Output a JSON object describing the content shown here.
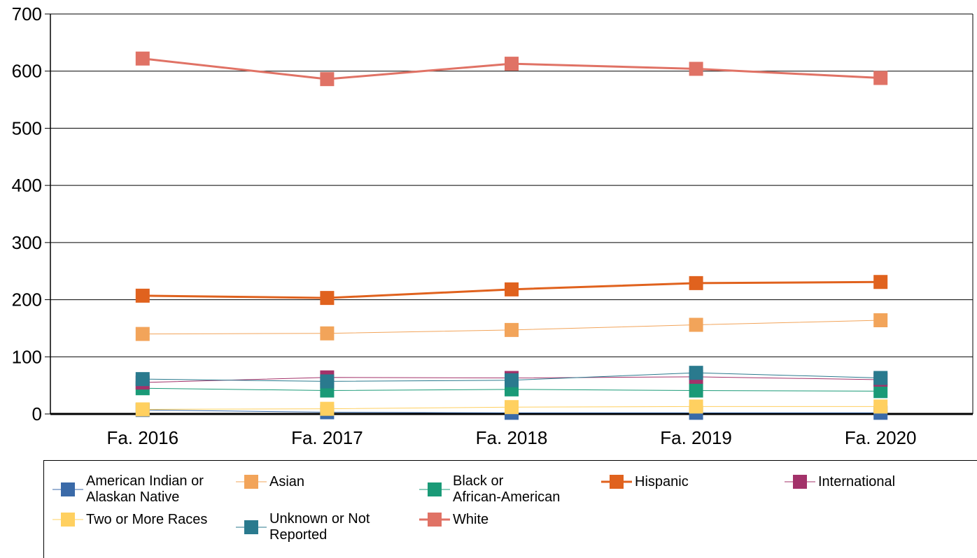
{
  "chart_data": {
    "type": "line",
    "title": "",
    "xlabel": "",
    "ylabel": "",
    "categories": [
      "Fa. 2016",
      "Fa. 2017",
      "Fa. 2018",
      "Fa. 2019",
      "Fa. 2020"
    ],
    "ylim": [
      0,
      700
    ],
    "yticks": [
      0,
      100,
      200,
      300,
      400,
      500,
      600,
      700
    ],
    "grid": true,
    "legend_position": "bottom",
    "series": [
      {
        "name": "American Indian or\nAlaskan Native",
        "color": "#3A6AA8",
        "values": [
          7,
          3,
          2,
          2,
          2
        ],
        "width": 1
      },
      {
        "name": "Asian",
        "color": "#F2A45A",
        "values": [
          140,
          141,
          147,
          156,
          164
        ],
        "width": 1
      },
      {
        "name": "Black or\nAfrican-American",
        "color": "#1A9A77",
        "values": [
          45,
          41,
          43,
          41,
          40
        ],
        "width": 1
      },
      {
        "name": "Hispanic",
        "color": "#E0621E",
        "values": [
          207,
          203,
          218,
          229,
          231
        ],
        "width": 3
      },
      {
        "name": "International",
        "color": "#A3326A",
        "values": [
          55,
          64,
          63,
          65,
          60
        ],
        "width": 1
      },
      {
        "name": "Two or More Races",
        "color": "#FFD060",
        "values": [
          8,
          9,
          12,
          13,
          13
        ],
        "width": 1
      },
      {
        "name": "Unknown or Not\nReported",
        "color": "#2A7A8E",
        "values": [
          61,
          57,
          59,
          72,
          63
        ],
        "width": 1
      },
      {
        "name": "White",
        "color": "#E07265",
        "values": [
          622,
          586,
          613,
          604,
          588
        ],
        "width": 3
      }
    ]
  }
}
